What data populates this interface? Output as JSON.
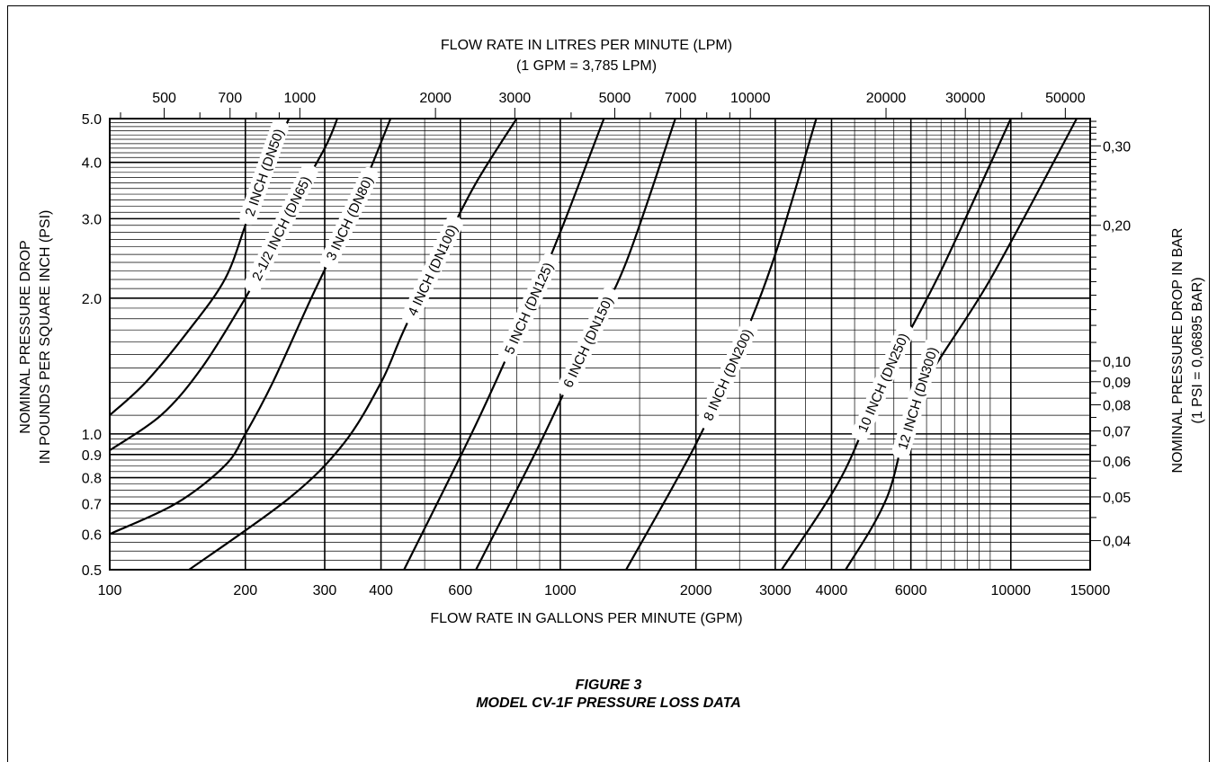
{
  "figure": {
    "number": "FIGURE 3",
    "title": "MODEL CV-1F PRESSURE LOSS DATA"
  },
  "chart_data": {
    "type": "line",
    "xscale": "log",
    "yscale": "log",
    "grid": true,
    "xlabel": "FLOW RATE IN GALLONS PER MINUTE (GPM)",
    "xlim": [
      100,
      15000
    ],
    "xticks": [
      {
        "v": 100,
        "label": "100"
      },
      {
        "v": 200,
        "label": "200"
      },
      {
        "v": 300,
        "label": "300"
      },
      {
        "v": 400,
        "label": "400"
      },
      {
        "v": 600,
        "label": "600"
      },
      {
        "v": 1000,
        "label": "1000"
      },
      {
        "v": 2000,
        "label": "2000"
      },
      {
        "v": 3000,
        "label": "3000"
      },
      {
        "v": 4000,
        "label": "4000"
      },
      {
        "v": 6000,
        "label": "6000"
      },
      {
        "v": 10000,
        "label": "10000"
      },
      {
        "v": 15000,
        "label": "15000"
      }
    ],
    "x2label": "FLOW RATE IN LITRES PER MINUTE (LPM)",
    "x2note": "(1 GPM = 3,785 LPM)",
    "x2factor": 3.785,
    "x2ticks": [
      {
        "v": 500,
        "label": "500"
      },
      {
        "v": 700,
        "label": "700"
      },
      {
        "v": 1000,
        "label": "1000"
      },
      {
        "v": 2000,
        "label": "2000"
      },
      {
        "v": 3000,
        "label": "3000"
      },
      {
        "v": 5000,
        "label": "5000"
      },
      {
        "v": 7000,
        "label": "7000"
      },
      {
        "v": 10000,
        "label": "10000"
      },
      {
        "v": 20000,
        "label": "20000"
      },
      {
        "v": 30000,
        "label": "30000"
      },
      {
        "v": 50000,
        "label": "50000"
      }
    ],
    "ylabel": "NOMINAL PRESSURE DROP",
    "ylabel2": "IN POUNDS PER SQUARE INCH (PSI)",
    "ylim": [
      0.5,
      5.0
    ],
    "yticks": [
      {
        "v": 0.5,
        "label": "0.5"
      },
      {
        "v": 0.6,
        "label": "0.6"
      },
      {
        "v": 0.7,
        "label": "0.7"
      },
      {
        "v": 0.8,
        "label": "0.8"
      },
      {
        "v": 0.9,
        "label": "0.9"
      },
      {
        "v": 1.0,
        "label": "1.0"
      },
      {
        "v": 2.0,
        "label": "2.0"
      },
      {
        "v": 3.0,
        "label": "3.0"
      },
      {
        "v": 4.0,
        "label": "4.0"
      },
      {
        "v": 5.0,
        "label": "5.0"
      }
    ],
    "y2label": "NOMINAL PRESSURE DROP IN BAR",
    "y2note": "(1 PSI = 0,06895 BAR)",
    "y2factor": 0.06895,
    "y2ticks": [
      {
        "v": 0.04,
        "label": "0,04"
      },
      {
        "v": 0.05,
        "label": "0,05"
      },
      {
        "v": 0.06,
        "label": "0,06"
      },
      {
        "v": 0.07,
        "label": "0,07"
      },
      {
        "v": 0.08,
        "label": "0,08"
      },
      {
        "v": 0.09,
        "label": "0,09"
      },
      {
        "v": 0.1,
        "label": "0,10"
      },
      {
        "v": 0.2,
        "label": "0,20"
      },
      {
        "v": 0.3,
        "label": "0,30"
      }
    ],
    "series": [
      {
        "name": "2 INCH (DN50)",
        "label_at": 220,
        "x": [
          100,
          120,
          150,
          180,
          200,
          220,
          250
        ],
        "y": [
          1.1,
          1.3,
          1.7,
          2.2,
          2.9,
          3.8,
          5.0
        ]
      },
      {
        "name": "2-1/2 INCH (DN65)",
        "label_at": 240,
        "x": [
          100,
          130,
          160,
          200,
          220,
          250,
          300,
          320
        ],
        "y": [
          0.92,
          1.1,
          1.4,
          2.0,
          2.4,
          3.1,
          4.3,
          5.0
        ]
      },
      {
        "name": "3 INCH (DN80)",
        "label_at": 340,
        "x": [
          100,
          140,
          180,
          200,
          230,
          280,
          350,
          420
        ],
        "y": [
          0.6,
          0.7,
          0.85,
          1.0,
          1.3,
          2.0,
          3.2,
          5.0
        ]
      },
      {
        "name": "4 INCH (DN100)",
        "label_at": 520,
        "x": [
          150,
          250,
          330,
          400,
          450,
          550,
          650,
          800
        ],
        "y": [
          0.5,
          0.72,
          0.95,
          1.3,
          1.7,
          2.6,
          3.6,
          5.0
        ]
      },
      {
        "name": "5 INCH (DN125)",
        "label_at": 850,
        "x": [
          450,
          650,
          850,
          1000,
          1250
        ],
        "y": [
          0.5,
          1.05,
          1.9,
          2.8,
          5.0
        ]
      },
      {
        "name": "6 INCH (DN150)",
        "label_at": 1150,
        "x": [
          650,
          900,
          1150,
          1400,
          1800
        ],
        "y": [
          0.5,
          0.95,
          1.6,
          2.4,
          5.0
        ]
      },
      {
        "name": "8 INCH (DN200)",
        "label_at": 2350,
        "x": [
          1400,
          2000,
          2500,
          3000,
          3700
        ],
        "y": [
          0.5,
          0.95,
          1.55,
          2.5,
          5.0
        ]
      },
      {
        "name": "10 INCH (DN250)",
        "label_at": 5200,
        "x": [
          3100,
          4200,
          5200,
          7000,
          10000
        ],
        "y": [
          0.5,
          0.8,
          1.3,
          2.3,
          5.0
        ]
      },
      {
        "name": "12 INCH (DN300)",
        "label_at": 6200,
        "x": [
          4300,
          5300,
          6200,
          9000,
          14000
        ],
        "y": [
          0.5,
          0.72,
          1.2,
          2.2,
          5.0
        ]
      }
    ]
  }
}
